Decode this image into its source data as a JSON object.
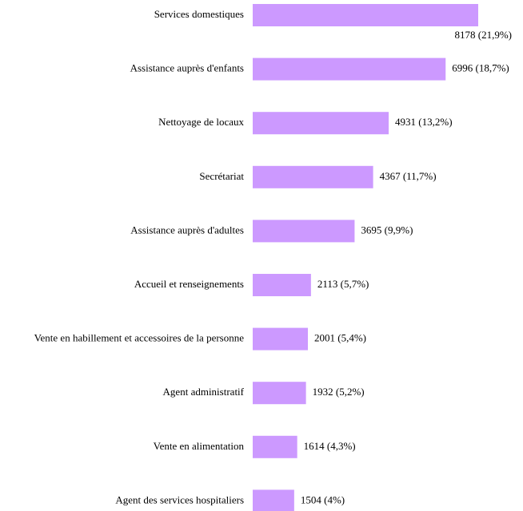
{
  "chart_data": {
    "type": "barh",
    "categories": [
      "Services domestiques",
      "Assistance auprès d'enfants",
      "Nettoyage de locaux",
      "Secrétariat",
      "Assistance auprès d'adultes",
      "Accueil et renseignements",
      "Vente en habillement et accessoires de la personne",
      "Agent administratif",
      "Vente en alimentation",
      "Agent des services hospitaliers"
    ],
    "values": [
      8178,
      6996,
      4931,
      4367,
      3695,
      2113,
      2001,
      1932,
      1614,
      1504
    ],
    "value_labels": [
      "8178 (21,9%)",
      "6996 (18,7%)",
      "4931 (13,2%)",
      "4367 (11,7%)",
      "3695 (9,9%)",
      "2113 (5,7%)",
      "2001 (5,4%)",
      "1932 (5,2%)",
      "1614 (4,3%)",
      "1504 (4%)"
    ],
    "color": "#cc99ff"
  }
}
